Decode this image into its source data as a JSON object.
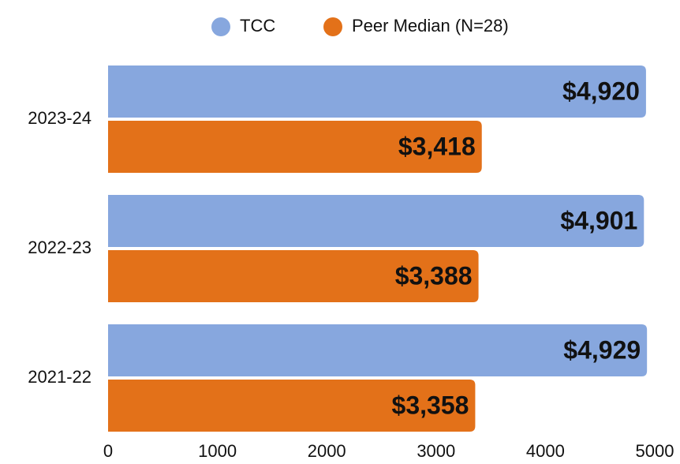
{
  "chart_data": {
    "type": "bar",
    "orientation": "horizontal",
    "categories": [
      "2023-24",
      "2022-23",
      "2021-22"
    ],
    "series": [
      {
        "name": "TCC",
        "color": "#87a7de",
        "values": [
          4920,
          4901,
          4929
        ],
        "value_labels": [
          "$4,920",
          "$4,901",
          "$4,929"
        ]
      },
      {
        "name": "Peer Median (N=28)",
        "color": "#e37119",
        "values": [
          3418,
          3388,
          3358
        ],
        "value_labels": [
          "$3,418",
          "$3,388",
          "$3,358"
        ]
      }
    ],
    "xlim": [
      0,
      5000
    ],
    "xticks": [
      0,
      1000,
      2000,
      3000,
      4000,
      5000
    ],
    "grid": false,
    "legend": "top"
  }
}
